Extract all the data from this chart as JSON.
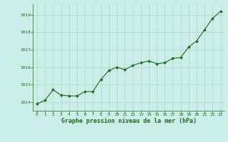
{
  "x": [
    0,
    1,
    2,
    3,
    4,
    5,
    6,
    7,
    8,
    9,
    10,
    11,
    12,
    13,
    14,
    15,
    16,
    17,
    18,
    19,
    20,
    21,
    22,
    23
  ],
  "y": [
    1013.9,
    1014.1,
    1014.7,
    1014.4,
    1014.35,
    1014.35,
    1014.6,
    1014.6,
    1015.3,
    1015.8,
    1016.0,
    1015.85,
    1016.1,
    1016.25,
    1016.35,
    1016.2,
    1016.25,
    1016.5,
    1016.55,
    1017.15,
    1017.5,
    1018.15,
    1018.8,
    1019.2
  ],
  "line_color": "#1a6b1a",
  "marker_color": "#1a6b1a",
  "bg_color": "#cceee8",
  "grid_color": "#aad4cc",
  "xlabel": "Graphe pression niveau de la mer (hPa)",
  "xlabel_color": "#1a6b1a",
  "ytick_labels": [
    "1014",
    "1015",
    "1016",
    "1017",
    "1018",
    "1019"
  ],
  "ytick_vals": [
    1014,
    1015,
    1016,
    1017,
    1018,
    1019
  ],
  "xtick_vals": [
    0,
    1,
    2,
    3,
    4,
    5,
    6,
    7,
    8,
    9,
    10,
    11,
    12,
    13,
    14,
    15,
    16,
    17,
    18,
    19,
    20,
    21,
    22,
    23
  ],
  "ylim": [
    1013.5,
    1019.6
  ],
  "xlim": [
    -0.5,
    23.5
  ]
}
